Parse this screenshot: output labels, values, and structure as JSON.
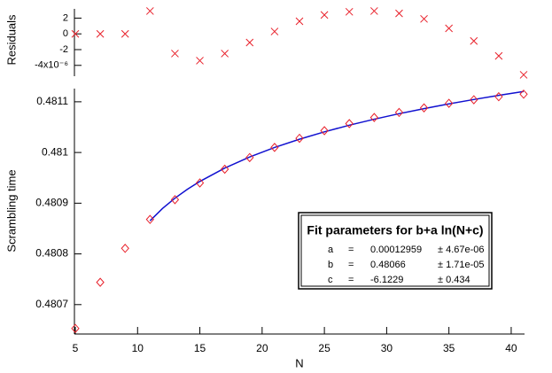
{
  "chart_data": [
    {
      "type": "scatter",
      "ylabel": "Residuals",
      "marker": "x",
      "color": "#e8202a",
      "x": [
        5,
        7,
        9,
        11,
        13,
        15,
        17,
        19,
        21,
        23,
        25,
        27,
        29,
        31,
        33,
        35,
        37,
        39,
        41
      ],
      "values": [
        0,
        0,
        0,
        2.9,
        -2.5,
        -3.4,
        -2.5,
        -1.1,
        0.3,
        1.6,
        2.4,
        2.8,
        2.9,
        2.6,
        1.9,
        0.7,
        -0.9,
        -2.8,
        -5.2
      ],
      "xlim": [
        5,
        41
      ],
      "ylim": [
        -5.6,
        3.4
      ],
      "yticks": [
        2,
        0,
        -2,
        {
          "value": -4,
          "label": "-4x10⁻⁶"
        }
      ]
    },
    {
      "type": "scatter",
      "ylabel": "Scrambling time",
      "xlabel": "N",
      "marker": "diamond",
      "color": "#e8202a",
      "x": [
        5,
        7,
        9,
        11,
        13,
        15,
        17,
        19,
        21,
        23,
        25,
        27,
        29,
        31,
        33,
        35,
        37,
        39,
        41
      ],
      "values": [
        0.480653,
        0.480744,
        0.480811,
        0.480868,
        0.480907,
        0.48094,
        0.480967,
        0.48099,
        0.48101,
        0.481028,
        0.481043,
        0.481057,
        0.481069,
        0.481079,
        0.481088,
        0.481097,
        0.481104,
        0.48111,
        0.481115
      ],
      "fit": {
        "color": "#1010d0",
        "x": [
          11,
          12,
          13,
          14,
          15,
          17,
          19,
          21,
          23,
          25,
          27,
          29,
          31,
          33,
          35,
          37,
          39,
          41
        ],
        "values": [
          0.4808653,
          0.4808895,
          0.4809099,
          0.4809275,
          0.4809429,
          0.4809693,
          0.4809912,
          0.4810099,
          0.4810262,
          0.4810407,
          0.4810538,
          0.4810656,
          0.4810765,
          0.4810865,
          0.4810958,
          0.4811045,
          0.4811126,
          0.4811203
        ]
      },
      "xlim": [
        5,
        41
      ],
      "xticks": [
        5,
        10,
        15,
        20,
        25,
        30,
        35,
        40
      ],
      "ylim": [
        0.480642,
        0.481126
      ],
      "yticks": [
        0.4807,
        0.4808,
        0.4809,
        0.481,
        0.4811
      ],
      "fit_table": {
        "title": "Fit parameters for b+a ln(N+c)",
        "rows": [
          [
            "a",
            "=",
            "0.00012959",
            "± 4.67e-06"
          ],
          [
            "b",
            "=",
            "0.48066",
            "± 1.71e-05"
          ],
          [
            "c",
            "=",
            "-6.1229",
            "± 0.434"
          ]
        ]
      }
    }
  ]
}
